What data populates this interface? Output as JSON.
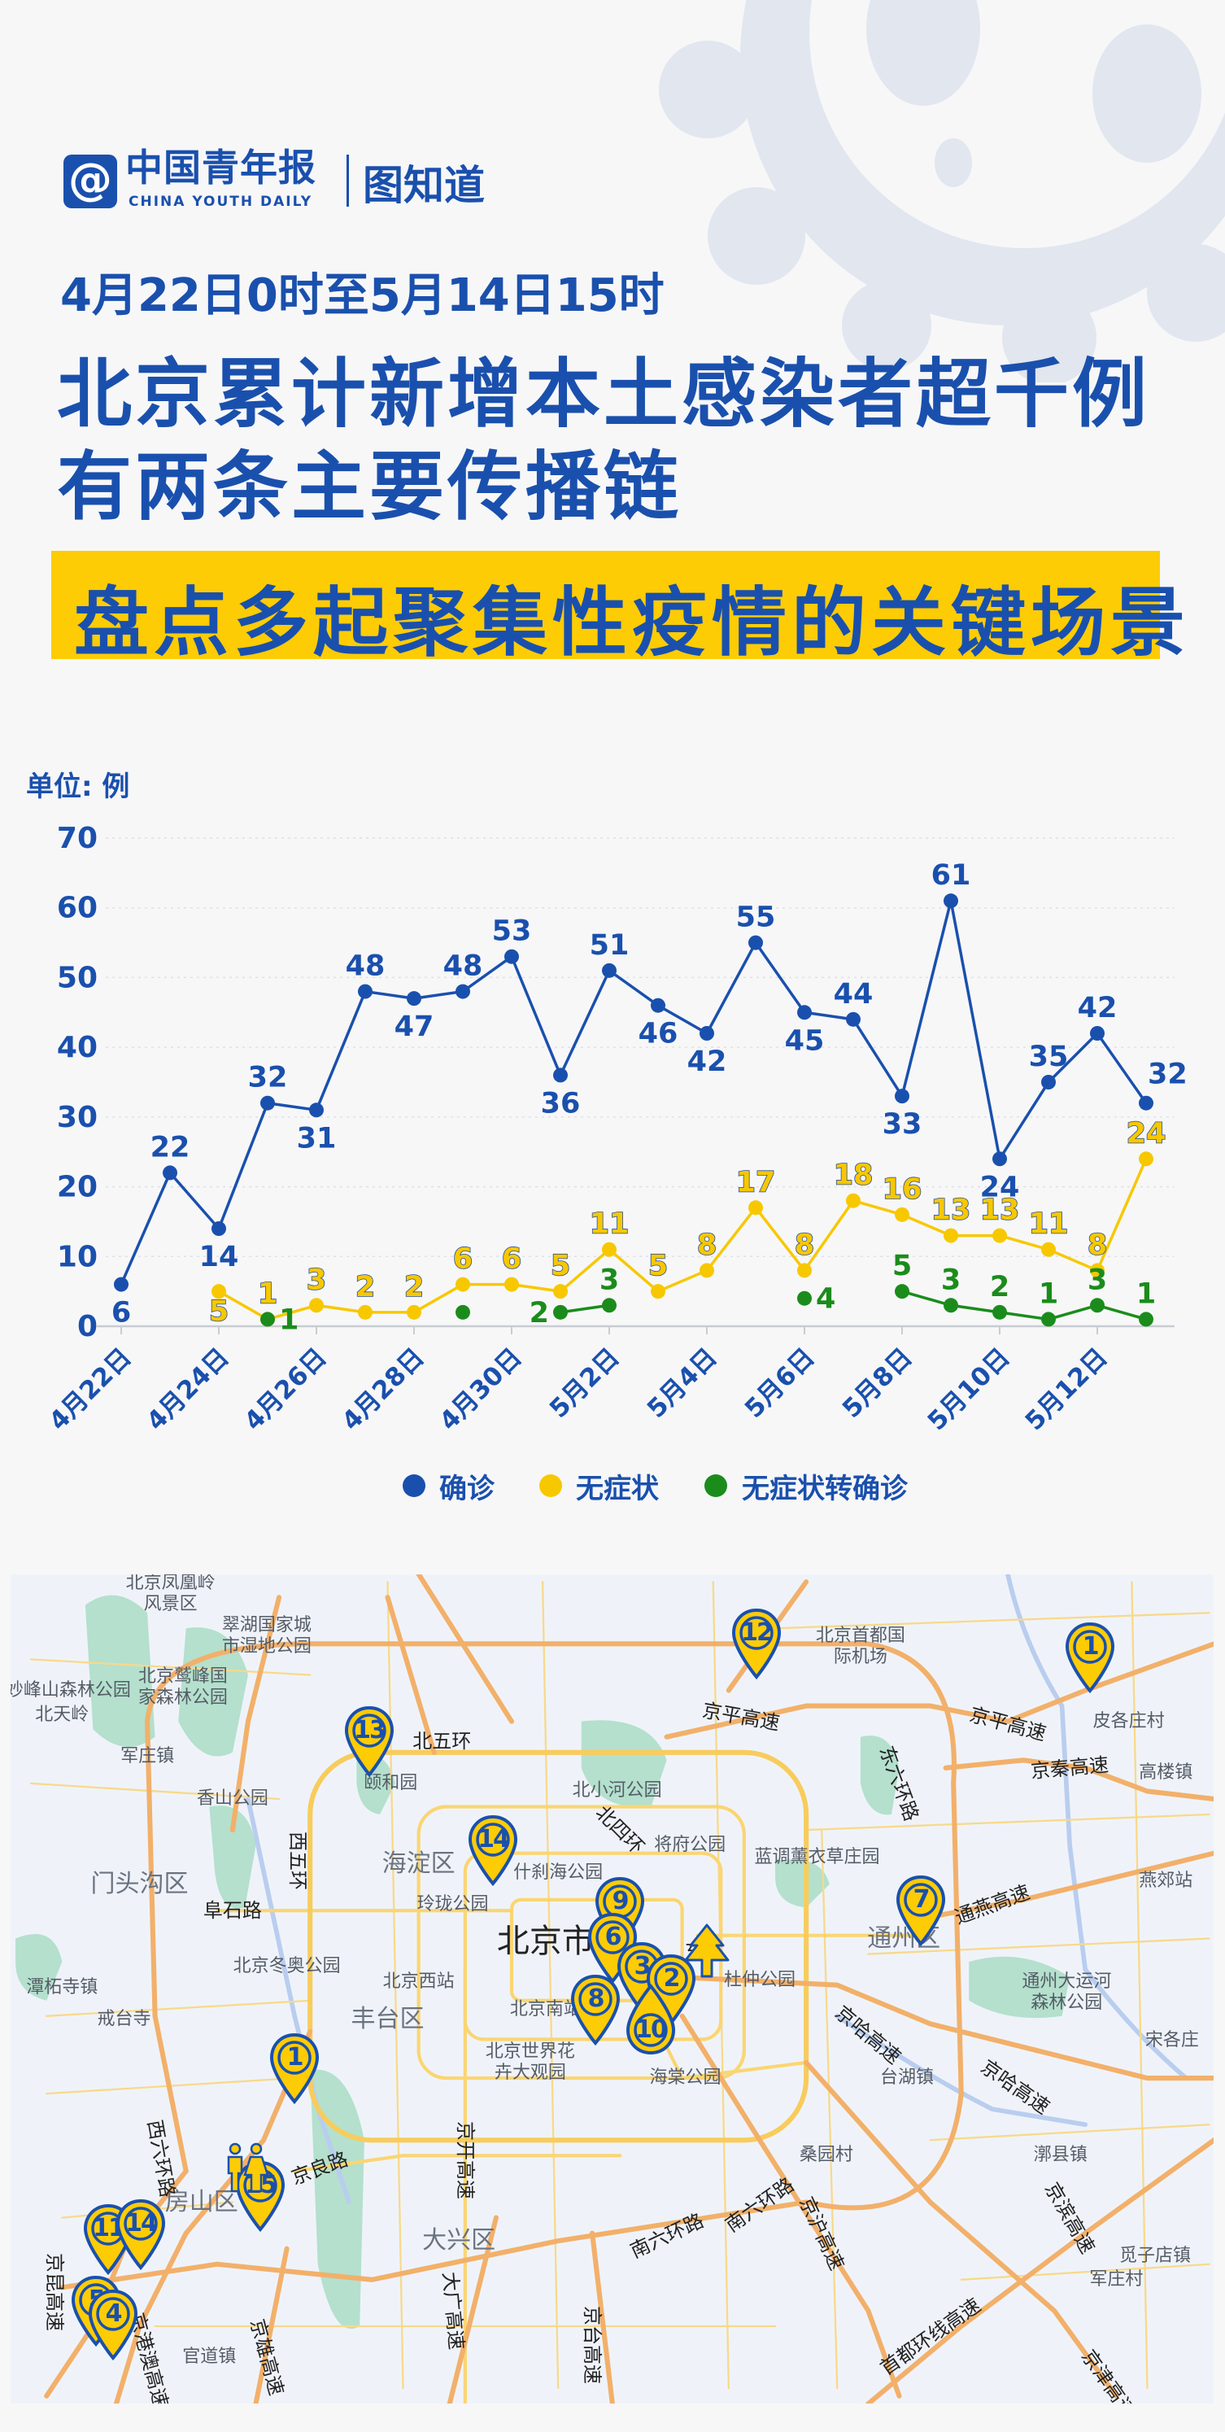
{
  "header": {
    "logo_mark": "@",
    "logo_text": "中国青年报",
    "logo_en": "CHINA YOUTH DAILY",
    "brand": "图知道",
    "date_range": "4月22日0时至5月14日15时",
    "title_line1": "北京累计新增本土感染者超千例",
    "title_line2": "有两条主要传播链",
    "banner": "盘点多起聚集性疫情的关键场景"
  },
  "colors": {
    "primary": "#1a50ad",
    "accent_yellow": "#fdcc05",
    "confirmed": "#1a50ad",
    "asymptomatic": "#f7c800",
    "converted": "#1b8c1b",
    "background": "#f7f7f8"
  },
  "chart_data": {
    "type": "line",
    "unit_label": "单位: 例",
    "categories": [
      "4月22日",
      "4月23日",
      "4月24日",
      "4月25日",
      "4月26日",
      "4月27日",
      "4月28日",
      "4月29日",
      "4月30日",
      "5月1日",
      "5月2日",
      "5月3日",
      "5月4日",
      "5月5日",
      "5月6日",
      "5月7日",
      "5月8日",
      "5月9日",
      "5月10日",
      "5月11日",
      "5月12日",
      "5月13日"
    ],
    "x_tick_labels": [
      "4月22日",
      "4月24日",
      "4月26日",
      "4月28日",
      "4月30日",
      "5月2日",
      "5月4日",
      "5月6日",
      "5月8日",
      "5月10日",
      "5月12日"
    ],
    "y_ticks": [
      0,
      10,
      20,
      30,
      40,
      50,
      60,
      70
    ],
    "ylim": [
      0,
      70
    ],
    "grid": true,
    "legend_position": "bottom",
    "series": [
      {
        "name": "确诊",
        "color": "#1a50ad",
        "values": [
          6,
          22,
          14,
          32,
          31,
          48,
          47,
          48,
          53,
          36,
          51,
          46,
          42,
          55,
          45,
          44,
          33,
          61,
          24,
          35,
          42,
          32
        ]
      },
      {
        "name": "无症状",
        "color": "#f7c800",
        "values": [
          null,
          null,
          5,
          1,
          3,
          2,
          2,
          6,
          6,
          5,
          11,
          5,
          8,
          17,
          8,
          18,
          16,
          13,
          13,
          11,
          8,
          24
        ]
      },
      {
        "name": "无症状转确诊",
        "color": "#1b8c1b",
        "values": [
          null,
          null,
          null,
          1,
          null,
          null,
          null,
          2,
          null,
          2,
          3,
          null,
          null,
          null,
          4,
          null,
          5,
          3,
          2,
          1,
          3,
          1
        ],
        "unlabeled_points": [
          7
        ]
      }
    ]
  },
  "map": {
    "labels": [
      "北京凤凰岭风景区",
      "翠湖国家城市湿地公园",
      "北京鹫峰国家森林公园",
      "妙峰山森林公园",
      "北天岭",
      "军庄镇",
      "香山公园",
      "颐和园",
      "北五环",
      "西五环",
      "海淀区",
      "门头沟区",
      "阜石路",
      "什刹海公园",
      "玲珑公园",
      "北京市",
      "北京冬奥公园",
      "北京西站",
      "潭柘寺镇",
      "戒台寺",
      "丰台区",
      "北京南站",
      "北京世界花卉大观园",
      "京良路",
      "房山区",
      "京开高速",
      "大兴区",
      "京港澳高速",
      "京昆高速",
      "官道镇",
      "京雄高速",
      "大广高速",
      "京台高速",
      "北京首都国际机场",
      "京平高速",
      "京平高速",
      "东六环路",
      "京秦高速",
      "皮各庄村",
      "高楼镇",
      "北小河公园",
      "北四环",
      "将府公园",
      "蓝调薰衣草庄园",
      "燕郊站",
      "通燕高速",
      "通州区",
      "杜仲公园",
      "通州大运河森林公园",
      "京哈高速",
      "台湖镇",
      "京哈高速",
      "宋各庄",
      "海棠公园",
      "桑园村",
      "漷县镇",
      "南六环路",
      "南六环路",
      "京沪高速",
      "京滨高速",
      "觅子店镇",
      "军庄村",
      "首都环线高速",
      "京津高速",
      "西六环路",
      "东"
    ],
    "markers": [
      "12",
      "1",
      "13",
      "14",
      "9",
      "6",
      "3",
      "2",
      "8",
      "10",
      "7",
      "1",
      "15",
      "11",
      "14",
      "5",
      "4"
    ],
    "icons": [
      "tree-icon",
      "people-icon"
    ]
  }
}
